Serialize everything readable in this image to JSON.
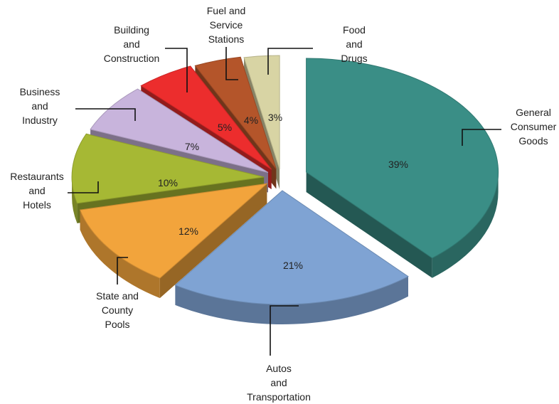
{
  "chart_data": {
    "type": "pie",
    "title": "",
    "categories": [
      "General Consumer Goods",
      "Autos and Transportation",
      "State and County Pools",
      "Restaurants and Hotels",
      "Business and Industry",
      "Building and Construction",
      "Fuel and Service Stations",
      "Food and Drugs"
    ],
    "label_lines": [
      [
        "General",
        "Consumer",
        "Goods"
      ],
      [
        "Autos",
        "and",
        "Transportation"
      ],
      [
        "State and",
        "County",
        "Pools"
      ],
      [
        "Restaurants",
        "and",
        "Hotels"
      ],
      [
        "Business",
        "and",
        "Industry"
      ],
      [
        "Building",
        "and",
        "Construction"
      ],
      [
        "Fuel and",
        "Service",
        "Stations"
      ],
      [
        "Food",
        "and",
        "Drugs"
      ]
    ],
    "values": [
      39,
      21,
      12,
      10,
      7,
      5,
      4,
      3
    ],
    "value_labels": [
      "39%",
      "21%",
      "12%",
      "10%",
      "7%",
      "5%",
      "4%",
      "3%"
    ],
    "colors": [
      "#3a8e86",
      "#7fa3d3",
      "#f2a43c",
      "#a6b834",
      "#c8b4dc",
      "#ec2d2d",
      "#b4552a",
      "#d8d4a4"
    ],
    "exploded": true,
    "three_d": true,
    "legend": "none (category labels with leader lines)"
  }
}
